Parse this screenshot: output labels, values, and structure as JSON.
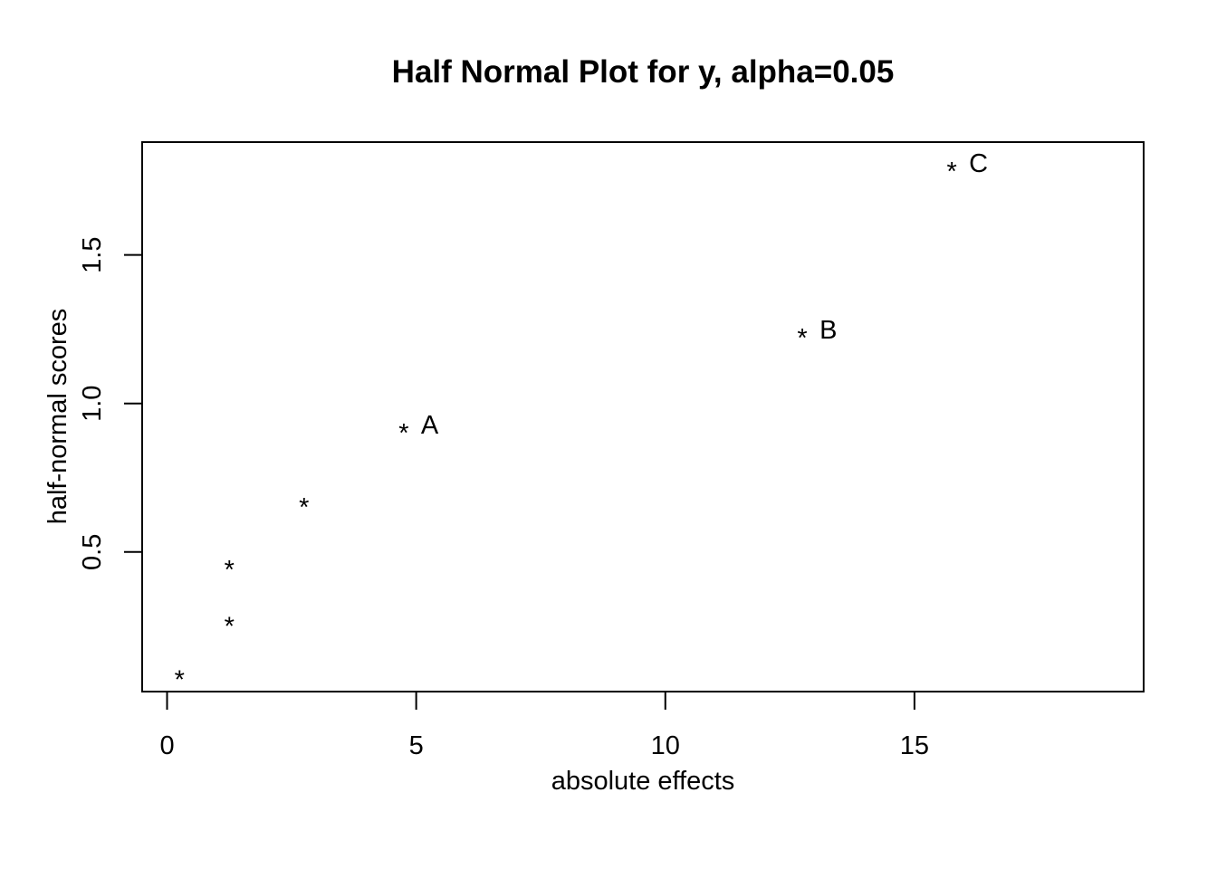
{
  "chart_data": {
    "type": "scatter",
    "title": "Half Normal Plot for y, alpha=0.05",
    "xlabel": "absolute effects",
    "ylabel": "half-normal scores",
    "xlim": [
      -0.5,
      19.6
    ],
    "ylim": [
      0.03,
      1.88
    ],
    "xticks": [
      0,
      5,
      10,
      15
    ],
    "xtick_labels": [
      "0",
      "5",
      "10",
      "15"
    ],
    "yticks": [
      0.5,
      1.0,
      1.5
    ],
    "ytick_labels": [
      "0.5",
      "1.0",
      "1.5"
    ],
    "marker": "*",
    "grid": false,
    "points": [
      {
        "x": 0.25,
        "y": 0.09,
        "label": ""
      },
      {
        "x": 1.25,
        "y": 0.27,
        "label": ""
      },
      {
        "x": 1.25,
        "y": 0.46,
        "label": ""
      },
      {
        "x": 2.75,
        "y": 0.67,
        "label": ""
      },
      {
        "x": 4.75,
        "y": 0.92,
        "label": "A"
      },
      {
        "x": 12.75,
        "y": 1.24,
        "label": "B"
      },
      {
        "x": 15.75,
        "y": 1.8,
        "label": "C"
      }
    ]
  }
}
